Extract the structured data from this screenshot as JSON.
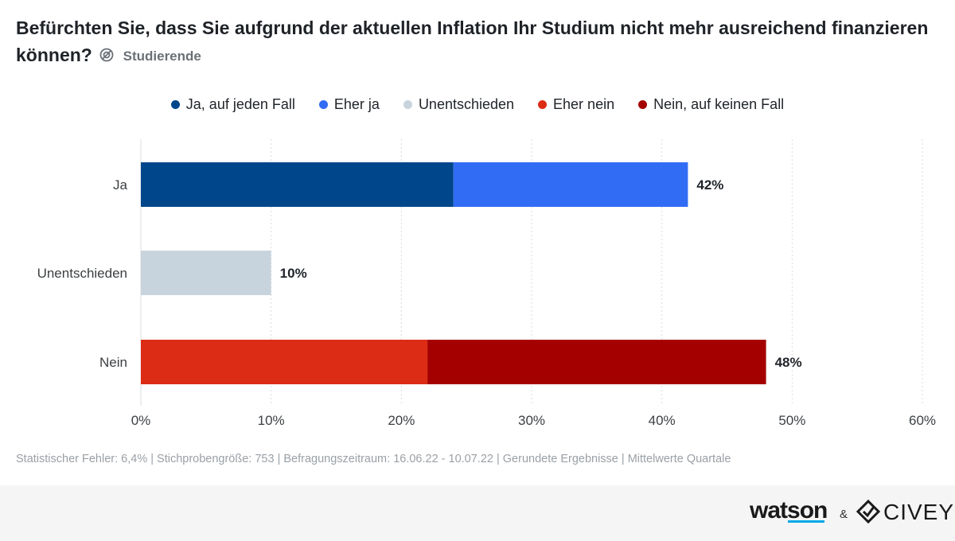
{
  "title": "Befürchten Sie, dass Sie aufgrund der aktuellen Inflation Ihr Studium nicht mehr ausreichend finanzieren können?",
  "subtitle": "Studierende",
  "footnote": "Statistischer Fehler: 6,4% | Stichprobengröße: 753 | Befragungszeitraum: 16.06.22 - 10.07.22 | Gerundete Ergebnisse | Mittelwerte Quartale",
  "brand": {
    "watson": "watson",
    "amp": "&",
    "civey": "CIVEY"
  },
  "colors": {
    "ja_auf_jeden_fall": "#00468b",
    "eher_ja": "#316cf4",
    "unentschieden": "#c8d4dd",
    "eher_nein": "#dd2c16",
    "nein_auf_keinen_fall": "#a40000"
  },
  "chart_data": {
    "type": "bar",
    "orientation": "horizontal",
    "stacked": true,
    "categories": [
      "Ja",
      "Unentschieden",
      "Nein"
    ],
    "series": [
      {
        "name": "Ja, auf jeden Fall",
        "color": "#00468b",
        "values": [
          24,
          0,
          0
        ]
      },
      {
        "name": "Eher ja",
        "color": "#316cf4",
        "values": [
          18,
          0,
          0
        ]
      },
      {
        "name": "Unentschieden",
        "color": "#c8d4dd",
        "values": [
          0,
          10,
          0
        ]
      },
      {
        "name": "Eher nein",
        "color": "#dd2c16",
        "values": [
          0,
          0,
          22
        ]
      },
      {
        "name": "Nein, auf keinen Fall",
        "color": "#a40000",
        "values": [
          0,
          0,
          26
        ]
      }
    ],
    "totals": [
      42,
      10,
      48
    ],
    "total_labels": [
      "42%",
      "10%",
      "48%"
    ],
    "xlim": [
      0,
      60
    ],
    "xticks": [
      0,
      10,
      20,
      30,
      40,
      50,
      60
    ],
    "xtick_labels": [
      "0%",
      "10%",
      "20%",
      "30%",
      "40%",
      "50%",
      "60%"
    ],
    "grid": true,
    "legend_position": "top-center"
  }
}
